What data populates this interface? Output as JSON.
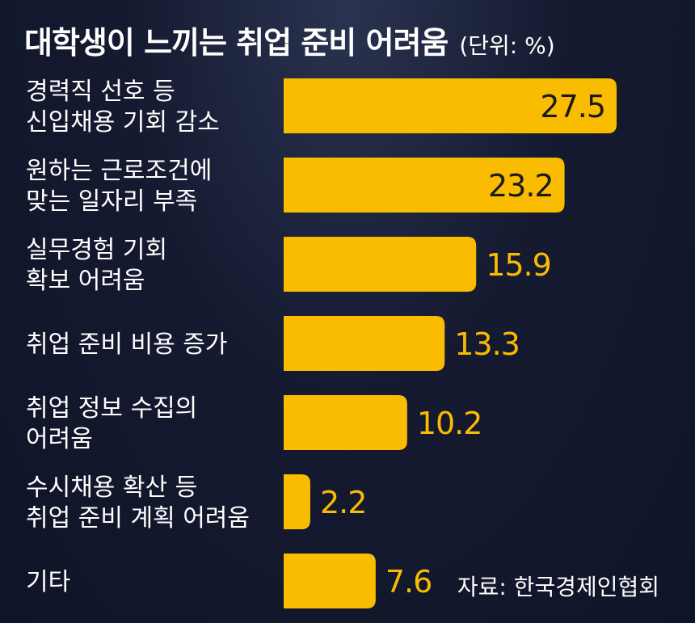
{
  "title": "대학생이 느끼는 취업 준비 어려움",
  "unit": "(단위: %)",
  "source": "자료: 한국경제인협회",
  "colors": {
    "bar": "#f9bc00",
    "label": "#ffffff",
    "value_outside": "#f9bc00",
    "value_inside": "#1a1a1a"
  },
  "chart_data": {
    "type": "bar",
    "orientation": "horizontal",
    "categories": [
      [
        "경력직 선호 등",
        "신입채용 기회 감소"
      ],
      [
        "원하는 근로조건에",
        "맞는 일자리 부족"
      ],
      [
        "실무경험 기회",
        "확보 어려움"
      ],
      [
        "취업 준비 비용 증가"
      ],
      [
        "취업 정보 수집의",
        "어려움"
      ],
      [
        "수시채용 확산 등",
        "취업 준비 계획 어려움"
      ],
      [
        "기타"
      ]
    ],
    "values": [
      27.5,
      23.2,
      15.9,
      13.3,
      10.2,
      2.2,
      7.6
    ],
    "value_labels": [
      "27.5",
      "23.2",
      "15.9",
      "13.3",
      "10.2",
      "2.2",
      "7.6"
    ],
    "xlim": [
      0,
      27.5
    ]
  }
}
